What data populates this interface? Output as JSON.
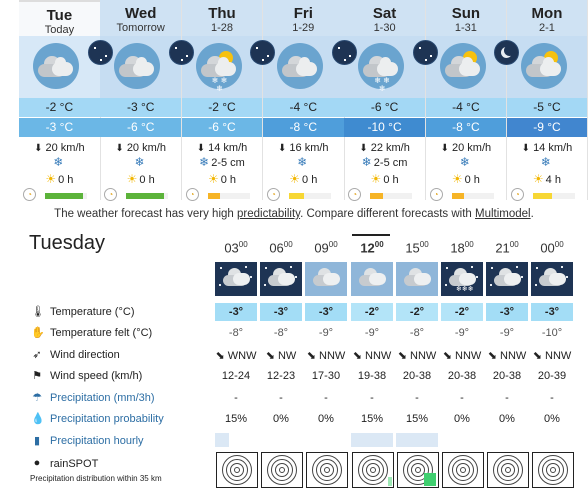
{
  "days": [
    {
      "name": "Tue",
      "sub": "Today",
      "max": "-2 °C",
      "min": "-3 °C",
      "wind": "20 km/h",
      "snow": "",
      "sun": "0 h",
      "sun_frac": 0.9,
      "sun_color": "#5cb33a",
      "icon": "partly-cloudy",
      "selected": true
    },
    {
      "name": "Wed",
      "sub": "Tomorrow",
      "max": "-3 °C",
      "min": "-6 °C",
      "wind": "20 km/h",
      "snow": "",
      "sun": "0 h",
      "sun_frac": 0.9,
      "sun_color": "#5cb33a",
      "icon": "partly-cloudy",
      "selected": false
    },
    {
      "name": "Thu",
      "sub": "1-28",
      "max": "-2 °C",
      "min": "-6 °C",
      "wind": "14 km/h",
      "snow": "2-5 cm",
      "sun": "0 h",
      "sun_frac": 0.3,
      "sun_color": "#f6b426",
      "icon": "sun-snow",
      "selected": false
    },
    {
      "name": "Fri",
      "sub": "1-29",
      "max": "-4 °C",
      "min": "-8 °C",
      "wind": "16 km/h",
      "snow": "",
      "sun": "0 h",
      "sun_frac": 0.35,
      "sun_color": "#f7d734",
      "icon": "cloudy",
      "selected": false
    },
    {
      "name": "Sat",
      "sub": "1-30",
      "max": "-6 °C",
      "min": "-10 °C",
      "wind": "22 km/h",
      "snow": "2-5 cm",
      "sun": "0 h",
      "sun_frac": 0.3,
      "sun_color": "#f6b426",
      "icon": "cloudy-snow",
      "selected": false
    },
    {
      "name": "Sun",
      "sub": "1-31",
      "max": "-4 °C",
      "min": "-8 °C",
      "wind": "20 km/h",
      "snow": "",
      "sun": "0 h",
      "sun_frac": 0.3,
      "sun_color": "#f6b426",
      "icon": "sun-cloud",
      "selected": false
    },
    {
      "name": "Mon",
      "sub": "2-1",
      "max": "-5 °C",
      "min": "-9 °C",
      "wind": "14 km/h",
      "snow": "",
      "sun": "4 h",
      "sun_frac": 0.45,
      "sun_color": "#f7d734",
      "icon": "sun-cloud",
      "selected": false
    }
  ],
  "note": {
    "before": "The weather forecast has very high ",
    "link1": "predictability",
    "middle": ". Compare different forecasts with ",
    "link2": "Multimodel",
    "after": "."
  },
  "detail": {
    "title": "Tuesday",
    "hours": [
      {
        "h": "03",
        "m": "00"
      },
      {
        "h": "06",
        "m": "00"
      },
      {
        "h": "09",
        "m": "00"
      },
      {
        "h": "12",
        "m": "00"
      },
      {
        "h": "15",
        "m": "00"
      },
      {
        "h": "18",
        "m": "00"
      },
      {
        "h": "21",
        "m": "00"
      },
      {
        "h": "00",
        "m": "00"
      }
    ],
    "selected_hour_index": 3,
    "rows": {
      "temperature": {
        "label": "Temperature (°C)",
        "values": [
          "-3°",
          "-3°",
          "-3°",
          "-2°",
          "-2°",
          "-2°",
          "-3°",
          "-3°"
        ]
      },
      "felt": {
        "label": "Temperature felt (°C)",
        "values": [
          "-8°",
          "-8°",
          "-9°",
          "-9°",
          "-8°",
          "-9°",
          "-9°",
          "-10°"
        ]
      },
      "wind_dir": {
        "label": "Wind direction",
        "values": [
          "WNW",
          "NW",
          "NNW",
          "NNW",
          "NNW",
          "NNW",
          "NNW",
          "NNW"
        ]
      },
      "wind_speed": {
        "label": "Wind speed (km/h)",
        "values": [
          "12-24",
          "12-23",
          "17-30",
          "19-38",
          "20-38",
          "20-38",
          "20-38",
          "20-39"
        ]
      },
      "precip": {
        "label": "Precipitation (mm/3h)",
        "values": [
          "-",
          "-",
          "-",
          "-",
          "-",
          "-",
          "-",
          "-"
        ]
      },
      "precip_prob": {
        "label": "Precipitation probability",
        "values": [
          "15%",
          "0%",
          "0%",
          "15%",
          "15%",
          "0%",
          "0%",
          "0%"
        ]
      },
      "precip_hourly": {
        "label": "Precipitation hourly"
      },
      "rainspot": {
        "label": "rainSPOT",
        "sub": "Precipitation distribution within 35 km"
      }
    },
    "hour_icons": [
      "night-cloudy",
      "night-cloudy",
      "day-cloudy",
      "day-cloudy",
      "day-cloudy",
      "night-cloudy-snow",
      "night-cloudy",
      "night-cloudy"
    ],
    "temp_colors": [
      "#a3ddf6",
      "#a3ddf6",
      "#a3ddf6",
      "#b3e4f8",
      "#b3e4f8",
      "#b3e4f8",
      "#a3ddf6",
      "#a3ddf6"
    ],
    "hourly_precip": [
      0.4,
      0,
      0,
      0.15,
      0.15,
      0,
      0,
      0
    ]
  },
  "colors": {
    "header": "#cfe2f3",
    "icon_bg": "#c6ddf2",
    "max_band": "#a3d8f5",
    "min_band": "#6bb7e6",
    "min_band_cold": "#3f8bd0",
    "night_bg": "#1e3454"
  }
}
